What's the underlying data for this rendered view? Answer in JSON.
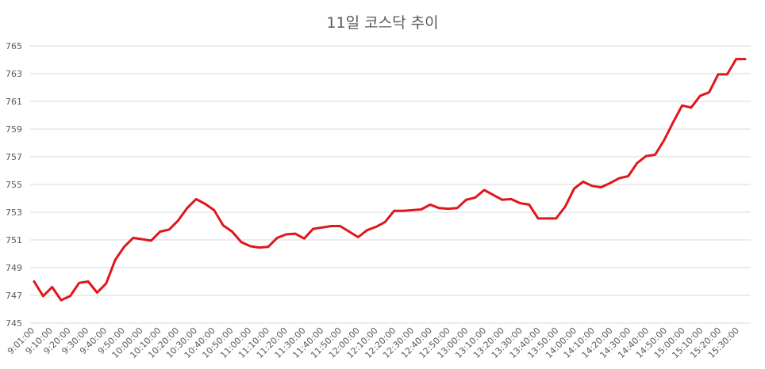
{
  "chart_data": {
    "type": "line",
    "title": "11일 코스닥 추이",
    "xlabel": "",
    "ylabel": "",
    "ylim": [
      745,
      765
    ],
    "y_ticks": [
      745,
      747,
      749,
      751,
      753,
      755,
      757,
      759,
      761,
      763,
      765
    ],
    "x_tick_labels": [
      "9:01:00",
      "9:10:00",
      "9:20:00",
      "9:30:00",
      "9:40:00",
      "9:50:00",
      "10:00:00",
      "10:10:00",
      "10:20:00",
      "10:30:00",
      "10:40:00",
      "10:50:00",
      "11:00:00",
      "11:10:00",
      "11:20:00",
      "11:30:00",
      "11:40:00",
      "11:50:00",
      "12:00:00",
      "12:10:00",
      "12:20:00",
      "12:30:00",
      "12:40:00",
      "12:50:00",
      "13:00:00",
      "13:10:00",
      "13:20:00",
      "13:30:00",
      "13:40:00",
      "13:50:00",
      "14:00:00",
      "14:10:00",
      "14:20:00",
      "14:30:00",
      "14:40:00",
      "14:50:00",
      "15:00:00",
      "15:10:00",
      "15:20:00",
      "15:30:00"
    ],
    "grid": true,
    "legend": "none",
    "series_color": "#e0161c",
    "series": [
      {
        "values": [
          748.0,
          746.95,
          747.6,
          746.65,
          746.95,
          747.9,
          748.0,
          747.2,
          747.85,
          749.55,
          750.5,
          751.15,
          751.05,
          750.95,
          751.6,
          751.75,
          752.4,
          753.3,
          753.95,
          753.6,
          753.15,
          752.05,
          751.6,
          750.85,
          750.55,
          750.45,
          750.5,
          751.15,
          751.4,
          751.45,
          751.1,
          751.8,
          751.9,
          752.0,
          752.0,
          751.6,
          751.2,
          751.7,
          751.95,
          752.3,
          753.1,
          753.1,
          753.15,
          753.2,
          753.55,
          753.3,
          753.25,
          753.3,
          753.9,
          754.05,
          754.6,
          754.25,
          753.9,
          753.95,
          753.65,
          753.55,
          752.55,
          752.55,
          752.55,
          753.4,
          754.7,
          755.2,
          754.9,
          754.8,
          755.1,
          755.45,
          755.6,
          756.55,
          757.05,
          757.15,
          758.2,
          759.5,
          760.7,
          760.55,
          761.4,
          761.65,
          762.95,
          762.95,
          764.05,
          764.05
        ]
      }
    ]
  }
}
